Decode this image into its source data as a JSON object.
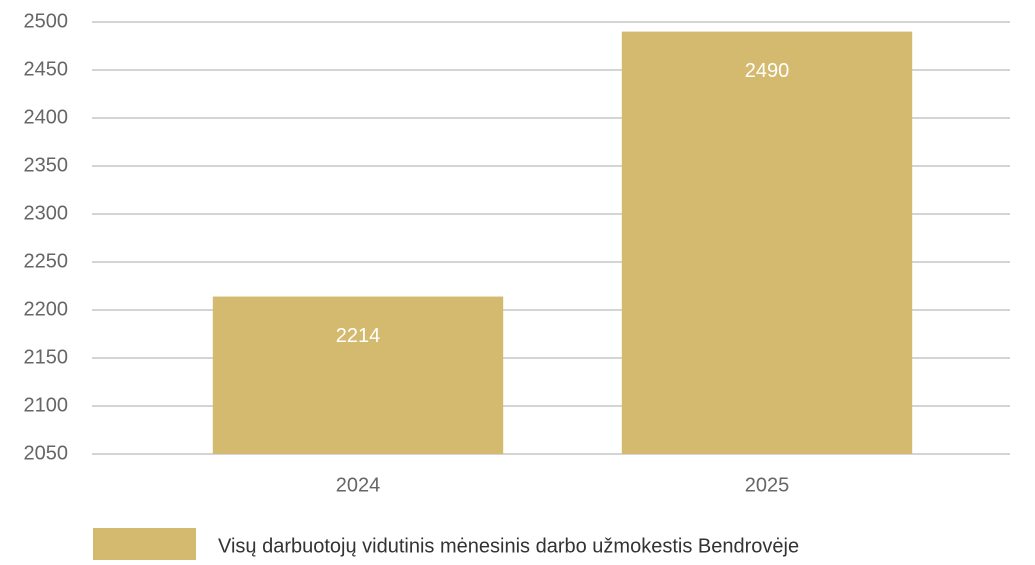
{
  "chart_data": {
    "type": "bar",
    "categories": [
      "2024",
      "2025"
    ],
    "series": [
      {
        "name": "Visų darbuotojų vidutinis mėnesinis darbo užmokestis Bendrovėje",
        "color": "#d4ba6e",
        "values": [
          2214,
          2490
        ]
      }
    ],
    "ylim": [
      2050,
      2500
    ],
    "yticks": [
      2050,
      2100,
      2150,
      2200,
      2250,
      2300,
      2350,
      2400,
      2450,
      2500
    ],
    "grid": true,
    "legend": "bottom",
    "data_labels": true
  }
}
